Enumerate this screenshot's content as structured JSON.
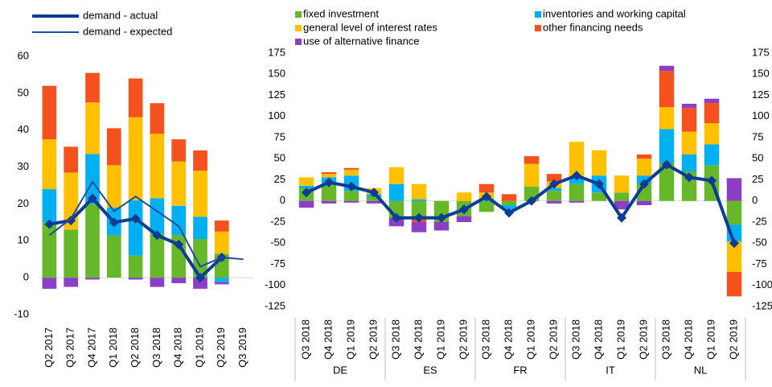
{
  "chart_data": [
    {
      "type": "bar",
      "categories": [
        "Q2 2017",
        "Q3 2017",
        "Q4 2017",
        "Q1 2018",
        "Q2 2018",
        "Q3 2018",
        "Q4 2018",
        "Q1 2019",
        "Q2 2019",
        "Q3 2019"
      ],
      "ylim": [
        -10,
        60
      ],
      "yticks": [
        -10,
        0,
        10,
        20,
        30,
        40,
        50,
        60
      ],
      "series": [
        {
          "color": "#66b82a",
          "values": [
            15,
            13,
            20,
            11.5,
            6,
            12,
            11.5,
            10.5,
            6.5,
            null
          ]
        },
        {
          "color": "#00b0f0",
          "values": [
            9,
            0,
            13.5,
            7.5,
            15,
            9.5,
            8,
            6,
            -1.2,
            null
          ]
        },
        {
          "color": "#ffc000",
          "values": [
            13.5,
            15.5,
            14,
            11.5,
            22.5,
            17.5,
            12,
            12.5,
            6,
            null
          ]
        },
        {
          "color": "#f4511e",
          "values": [
            14.5,
            7,
            8,
            10,
            10.5,
            8.3,
            6,
            5.5,
            3,
            null
          ]
        },
        {
          "color": "#8a3fc4",
          "values": [
            -3,
            -2.5,
            -0.5,
            0,
            -0.5,
            -2.5,
            -1.5,
            -3,
            -0.6,
            null
          ]
        },
        {
          "type": "line",
          "name": "demand - actual",
          "color": "#0d3c96",
          "marker": "diamond",
          "values": [
            14.5,
            15.5,
            21.5,
            15,
            16,
            11.5,
            9,
            0,
            5.5,
            null
          ]
        },
        {
          "type": "line",
          "name": "demand - expected",
          "color": "#1f4e9c",
          "values": [
            11.5,
            16,
            26,
            18,
            22,
            18,
            14,
            3,
            5.5,
            5
          ]
        }
      ]
    },
    {
      "type": "bar",
      "groups": [
        "DE",
        "ES",
        "FR",
        "IT",
        "NL"
      ],
      "categories": [
        "Q3 2018",
        "Q4 2018",
        "Q1 2019",
        "Q2 2019",
        "Q3 2018",
        "Q4 2018",
        "Q1 2019",
        "Q2 2019",
        "Q3 2018",
        "Q4 2018",
        "Q1 2019",
        "Q2 2019",
        "Q3 2018",
        "Q4 2018",
        "Q1 2019",
        "Q2 2019",
        "Q3 2018",
        "Q4 2018",
        "Q1 2019",
        "Q2 2019"
      ],
      "ylim": [
        -125,
        175
      ],
      "yticks": [
        -125,
        -100,
        -75,
        -50,
        -25,
        0,
        25,
        50,
        75,
        100,
        125,
        150,
        175
      ],
      "y2lim": [
        -125,
        175
      ],
      "y2ticks": [
        -125,
        -100,
        -75,
        -50,
        -25,
        0,
        25,
        50,
        75,
        100,
        125,
        150,
        175
      ],
      "series": [
        {
          "name": "fixed investment",
          "color": "#66b82a",
          "values": [
            15,
            20,
            12,
            5,
            -20,
            -20,
            -25,
            -18,
            -13,
            -5,
            17,
            12,
            20,
            10,
            10,
            20,
            45,
            35,
            42,
            -28
          ]
        },
        {
          "name": "inventories and working capital",
          "color": "#00b0f0",
          "values": [
            3,
            8,
            18,
            3,
            20,
            2,
            0,
            0,
            3,
            -5,
            0,
            3,
            8,
            20,
            0,
            10,
            40,
            20,
            25,
            -20
          ]
        },
        {
          "name": "general level of interest rates",
          "color": "#ffc000",
          "values": [
            10,
            4,
            7,
            7,
            20,
            18,
            0,
            10,
            7,
            0,
            27,
            8,
            42,
            30,
            20,
            20,
            26,
            27,
            25,
            -36
          ]
        },
        {
          "name": "other financing needs",
          "color": "#f4511e",
          "values": [
            0,
            2,
            2,
            0,
            0,
            -5,
            0,
            0,
            10,
            8,
            9,
            9,
            0,
            0,
            0,
            5,
            43,
            28,
            24,
            -29
          ]
        },
        {
          "name": "use of alternative finance",
          "color": "#8a3fc4",
          "values": [
            -8,
            -3,
            -2,
            -3,
            -10,
            -12,
            -10,
            -7,
            0,
            0,
            0,
            -3,
            -2,
            0,
            -10,
            -5,
            6,
            5,
            5,
            27
          ]
        },
        {
          "type": "line",
          "color": "#0d3c96",
          "marker": "diamond",
          "values": [
            10,
            22,
            17,
            10,
            -20,
            -20,
            -20,
            -10,
            5,
            -14,
            0,
            20,
            30,
            20,
            -20,
            20,
            43,
            28,
            24,
            -50
          ]
        }
      ]
    }
  ]
}
